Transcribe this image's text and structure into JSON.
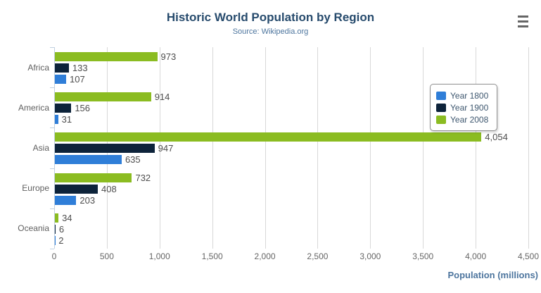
{
  "header": {
    "title": "Historic World Population by Region",
    "subtitle": "Source: Wikipedia.org"
  },
  "menu": {
    "icon": "hamburger-menu-icon"
  },
  "chart_data": {
    "type": "bar",
    "orientation": "horizontal",
    "title": "Historic World Population by Region",
    "subtitle": "Source: Wikipedia.org",
    "categories": [
      "Africa",
      "America",
      "Asia",
      "Europe",
      "Oceania"
    ],
    "series": [
      {
        "name": "Year 1800",
        "color": "#2f7ed8",
        "values": [
          107,
          31,
          635,
          203,
          2
        ]
      },
      {
        "name": "Year 1900",
        "color": "#0d233a",
        "values": [
          133,
          156,
          947,
          408,
          6
        ]
      },
      {
        "name": "Year 2008",
        "color": "#8bbc21",
        "values": [
          973,
          914,
          4054,
          732,
          34
        ]
      }
    ],
    "bar_order_top_to_bottom": [
      "Year 2008",
      "Year 1900",
      "Year 1800"
    ],
    "data_labels": true,
    "xlabel": "Population (millions)",
    "ylabel": "",
    "xlim": [
      0,
      4500
    ],
    "xticks": [
      0,
      500,
      1000,
      1500,
      2000,
      2500,
      3000,
      3500,
      4000,
      4500
    ],
    "grid": true,
    "legend": {
      "position": "floating-right",
      "entries": [
        "Year 1800",
        "Year 1900",
        "Year 2008"
      ]
    },
    "colors": {
      "title": "#274b6d",
      "subtitle": "#4d759e",
      "axis_title": "#4d759e",
      "axis_line": "#c0d0e0",
      "gridline": "#d8d8d8",
      "tick_label": "#666666",
      "category_label": "#606060",
      "data_label": "#4d4d4d"
    }
  }
}
